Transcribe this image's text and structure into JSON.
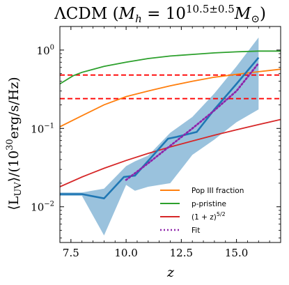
{
  "chart_data": {
    "type": "line",
    "title": {
      "lead": "ΛCDM (",
      "m": "M",
      "m_sub": "h",
      "eq": " = 10",
      "exp": "10.5±0.5",
      "tail_m": "M",
      "tail_sub": "⊙",
      "close": ")"
    },
    "xlabel": "z",
    "ylabel": "⟨L_UV⟩/(10^30 erg/s/Hz)",
    "ylabel_parts": {
      "lead": "⟨L",
      "sub": "UV",
      "mid": "⟩/(10",
      "sup": "30",
      "tail": "erg/s/Hz)"
    },
    "xlim": [
      7.0,
      17.0
    ],
    "ylim": [
      0.0035,
      2.0
    ],
    "yscale": "log",
    "x_ticks": [
      7.5,
      10.0,
      12.5,
      15.0
    ],
    "x_tick_labels": [
      "7.5",
      "10.0",
      "12.5",
      "15.0"
    ],
    "y_ticks": [
      0.01,
      0.1,
      1.0
    ],
    "y_tick_labels": [
      {
        "base": "10",
        "exp": "−2"
      },
      {
        "base": "10",
        "exp": "−1"
      },
      {
        "base": "10",
        "exp": "0"
      }
    ],
    "grid": false,
    "legend_position": "lower-right",
    "series": [
      {
        "name": "Pop III fraction",
        "color": "#ff7f0e",
        "x": [
          7.0,
          8.0,
          9.0,
          10.0,
          11.0,
          12.0,
          13.0,
          14.0,
          15.0,
          16.0,
          17.0
        ],
        "y": [
          0.105,
          0.145,
          0.2,
          0.255,
          0.3,
          0.35,
          0.4,
          0.45,
          0.49,
          0.53,
          0.57
        ]
      },
      {
        "name": "p-pristine",
        "color": "#2ca02c",
        "x": [
          7.0,
          7.6,
          8.0,
          9.0,
          10.0,
          11.0,
          12.0,
          13.0,
          14.0,
          15.0,
          16.0,
          17.0
        ],
        "y": [
          0.37,
          0.47,
          0.52,
          0.62,
          0.7,
          0.78,
          0.84,
          0.88,
          0.92,
          0.95,
          0.97,
          0.97
        ]
      },
      {
        "name": "(1+z)^5/2",
        "label_parts": {
          "lead": "(1 + z)",
          "sup": "5/2"
        },
        "color": "#d62728",
        "x": [
          7.0,
          8.0,
          9.0,
          10.0,
          11.0,
          12.0,
          13.0,
          14.0,
          15.0,
          16.0,
          17.0
        ],
        "y": [
          0.018,
          0.024,
          0.031,
          0.039,
          0.048,
          0.058,
          0.069,
          0.082,
          0.096,
          0.112,
          0.13
        ]
      },
      {
        "name": "Fit",
        "color": "#8e24aa",
        "dash": "dotted",
        "x": [
          10.0,
          11.0,
          12.0,
          13.0,
          14.0,
          15.0,
          16.0
        ],
        "y": [
          0.022,
          0.036,
          0.06,
          0.1,
          0.17,
          0.3,
          0.68
        ]
      }
    ],
    "mean": {
      "color": "#1f77b4",
      "x": [
        7.0,
        8.0,
        9.0,
        9.9,
        10.4,
        11.9,
        12.3,
        13.2,
        14.0,
        15.0,
        16.0
      ],
      "y": [
        0.0145,
        0.0145,
        0.0128,
        0.024,
        0.025,
        0.074,
        0.078,
        0.09,
        0.175,
        0.37,
        0.8
      ]
    },
    "band": {
      "color": "#1f77b4",
      "alpha": 0.45,
      "x": [
        7.0,
        8.0,
        9.0,
        10.0,
        10.4,
        11.0,
        12.0,
        13.0,
        14.0,
        15.0,
        16.0
      ],
      "upper": [
        0.0152,
        0.0152,
        0.017,
        0.033,
        0.038,
        0.045,
        0.088,
        0.14,
        0.28,
        0.62,
        1.45
      ],
      "lower": [
        0.0138,
        0.0138,
        0.0043,
        0.019,
        0.016,
        0.018,
        0.02,
        0.046,
        0.072,
        0.12,
        0.175
      ]
    },
    "hlines": [
      {
        "y": 0.48,
        "color": "#ff0000",
        "style": "dashed"
      },
      {
        "y": 0.24,
        "color": "#ff0000",
        "style": "dashed"
      }
    ]
  }
}
